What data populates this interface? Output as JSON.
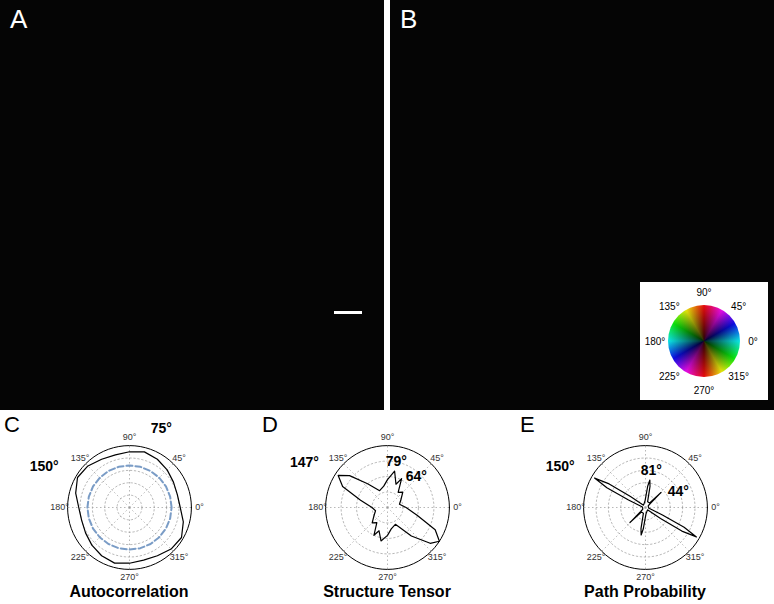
{
  "image_panels": [
    {
      "label": "A"
    },
    {
      "label": "B",
      "color_wheel": [
        {
          "value": 0,
          "label": "0°"
        },
        {
          "value": 45,
          "label": "45°"
        },
        {
          "value": 90,
          "label": "90°"
        },
        {
          "value": 135,
          "label": "135°"
        },
        {
          "value": 180,
          "label": "180°"
        },
        {
          "value": 225,
          "label": "225°"
        },
        {
          "value": 270,
          "label": "270°"
        },
        {
          "value": 315,
          "label": "315°"
        }
      ]
    }
  ],
  "chart_data": [
    {
      "panel": "C",
      "type": "polar_line",
      "title": "Autocorrelation",
      "rlim": [
        0,
        1
      ],
      "rticks": [
        0.2,
        0.4,
        0.6,
        0.8
      ],
      "angle_ticks": [
        {
          "value": 0,
          "label": "0°"
        },
        {
          "value": 45,
          "label": "45°"
        },
        {
          "value": 90,
          "label": "90°"
        },
        {
          "value": 135,
          "label": "135°"
        },
        {
          "value": 180,
          "label": "180°"
        },
        {
          "value": 225,
          "label": "225°"
        },
        {
          "value": 270,
          "label": "270°"
        },
        {
          "value": 315,
          "label": "315°"
        }
      ],
      "series": [
        {
          "color": "#000000",
          "line_style": "solid",
          "theta": [
            0,
            15,
            30,
            45,
            60,
            75,
            90,
            105,
            120,
            135,
            150,
            165,
            180,
            195,
            210,
            225,
            240,
            255,
            270,
            285,
            300,
            315,
            330,
            345
          ],
          "r": [
            0.82,
            0.8,
            0.82,
            0.86,
            0.9,
            0.93,
            0.9,
            0.88,
            0.9,
            0.95,
            0.97,
            0.9,
            0.82,
            0.8,
            0.82,
            0.86,
            0.9,
            0.93,
            0.9,
            0.88,
            0.9,
            0.95,
            0.97,
            0.9
          ]
        },
        {
          "color": "#7a9cc6",
          "line_style": "dashed",
          "theta": [
            0,
            15,
            30,
            45,
            60,
            75,
            90,
            105,
            120,
            135,
            150,
            165,
            180,
            195,
            210,
            225,
            240,
            255,
            270,
            285,
            300,
            315,
            330,
            345
          ],
          "r": [
            0.68,
            0.68,
            0.68,
            0.68,
            0.68,
            0.68,
            0.68,
            0.68,
            0.68,
            0.68,
            0.68,
            0.68,
            0.68,
            0.68,
            0.68,
            0.68,
            0.68,
            0.68,
            0.68,
            0.68,
            0.68,
            0.68,
            0.68,
            0.68
          ]
        }
      ],
      "annotations": [
        {
          "value": 75,
          "label": "75°"
        },
        {
          "value": 150,
          "label": "150°"
        }
      ]
    },
    {
      "panel": "D",
      "type": "polar_line",
      "title": "Structure Tensor",
      "rlim": [
        0,
        1
      ],
      "rticks": [
        0.25,
        0.5,
        0.75
      ],
      "angle_ticks": [
        {
          "value": 0,
          "label": "0°"
        },
        {
          "value": 45,
          "label": "45°"
        },
        {
          "value": 90,
          "label": "90°"
        },
        {
          "value": 135,
          "label": "135°"
        },
        {
          "value": 180,
          "label": "180°"
        },
        {
          "value": 225,
          "label": "225°"
        },
        {
          "value": 270,
          "label": "270°"
        },
        {
          "value": 315,
          "label": "315°"
        }
      ],
      "series": [
        {
          "color": "#000000",
          "line_style": "solid",
          "theta": [
            0,
            15,
            30,
            45,
            55,
            64,
            70,
            79,
            90,
            100,
            115,
            130,
            140,
            147,
            155,
            165,
            180,
            195,
            210,
            225,
            235,
            244,
            250,
            259,
            270,
            280,
            295,
            310,
            320,
            327,
            335,
            345
          ],
          "r": [
            0.3,
            0.2,
            0.25,
            0.35,
            0.3,
            0.52,
            0.4,
            0.6,
            0.45,
            0.35,
            0.3,
            0.5,
            0.8,
            0.95,
            0.8,
            0.45,
            0.25,
            0.2,
            0.25,
            0.35,
            0.3,
            0.5,
            0.4,
            0.55,
            0.45,
            0.35,
            0.3,
            0.6,
            0.9,
            1.0,
            0.85,
            0.5
          ]
        }
      ],
      "annotations": [
        {
          "value": 147,
          "label": "147°"
        },
        {
          "value": 79,
          "label": "79°"
        },
        {
          "value": 64,
          "label": "64°"
        }
      ]
    },
    {
      "panel": "E",
      "type": "polar_line",
      "title": "Path Probability",
      "rlim": [
        0,
        1
      ],
      "rticks": [
        0.2,
        0.4,
        0.6,
        0.8
      ],
      "angle_ticks": [
        {
          "value": 0,
          "label": "0°"
        },
        {
          "value": 45,
          "label": "45°"
        },
        {
          "value": 90,
          "label": "90°"
        },
        {
          "value": 135,
          "label": "135°"
        },
        {
          "value": 180,
          "label": "180°"
        },
        {
          "value": 225,
          "label": "225°"
        },
        {
          "value": 270,
          "label": "270°"
        },
        {
          "value": 315,
          "label": "315°"
        }
      ],
      "series": [
        {
          "color": "#000000",
          "line_style": "solid",
          "theta": [
            0,
            30,
            40,
            44,
            48,
            70,
            78,
            81,
            84,
            95,
            130,
            144,
            147,
            150,
            153,
            156,
            170,
            210,
            220,
            224,
            228,
            250,
            258,
            261,
            264,
            275,
            310,
            324,
            327,
            330,
            333,
            336,
            350
          ],
          "r": [
            0.05,
            0.05,
            0.1,
            0.35,
            0.1,
            0.1,
            0.35,
            0.45,
            0.35,
            0.1,
            0.05,
            0.3,
            0.7,
            0.95,
            0.7,
            0.3,
            0.05,
            0.05,
            0.1,
            0.35,
            0.1,
            0.1,
            0.35,
            0.45,
            0.35,
            0.1,
            0.05,
            0.3,
            0.7,
            0.95,
            0.7,
            0.3,
            0.05
          ]
        }
      ],
      "annotations": [
        {
          "value": 150,
          "label": "150°"
        },
        {
          "value": 81,
          "label": "81°"
        },
        {
          "value": 44,
          "label": "44°"
        }
      ]
    }
  ]
}
